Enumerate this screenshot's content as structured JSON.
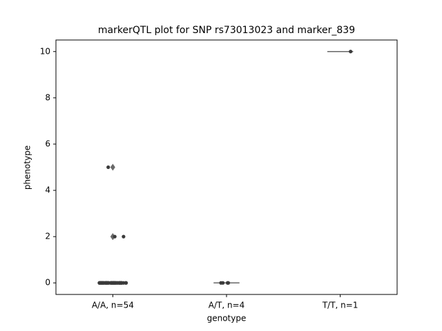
{
  "chart_data": {
    "type": "box",
    "title": "markerQTL plot for SNP rs73013023 and marker_839",
    "xlabel": "genotype",
    "ylabel": "phenotype",
    "categories": [
      "A/A, n=54",
      "A/T, n=4",
      "T/T, n=1"
    ],
    "groups": [
      {
        "values": [
          0,
          0,
          0,
          0,
          0,
          0,
          0,
          0,
          0,
          0,
          0,
          0,
          0,
          0,
          0,
          0,
          0,
          0,
          0,
          0,
          0,
          0,
          0,
          0,
          0,
          0,
          0,
          0,
          0,
          0,
          0,
          0,
          0,
          0,
          0,
          0,
          0,
          0,
          0,
          0,
          0,
          0,
          0,
          0,
          0,
          0,
          0,
          0,
          0,
          0,
          0,
          2,
          2,
          5
        ],
        "box": {
          "whislo": 0,
          "q1": 0,
          "median": 0,
          "q3": 0,
          "whishi": 0,
          "fliers": [
            2,
            2,
            5
          ]
        }
      },
      {
        "values": [
          0,
          0,
          0,
          0
        ],
        "box": {
          "whislo": 0,
          "q1": 0,
          "median": 0,
          "q3": 0,
          "whishi": 0,
          "fliers": []
        }
      },
      {
        "values": [
          10
        ],
        "box": {
          "whislo": 10,
          "q1": 10,
          "median": 10,
          "q3": 10,
          "whishi": 10,
          "fliers": []
        }
      }
    ],
    "box_color": "#696969",
    "point_color": "#3b3b3b",
    "ylim": [
      -0.5,
      10.5
    ],
    "yticks": [
      0,
      2,
      4,
      6,
      8,
      10
    ]
  }
}
